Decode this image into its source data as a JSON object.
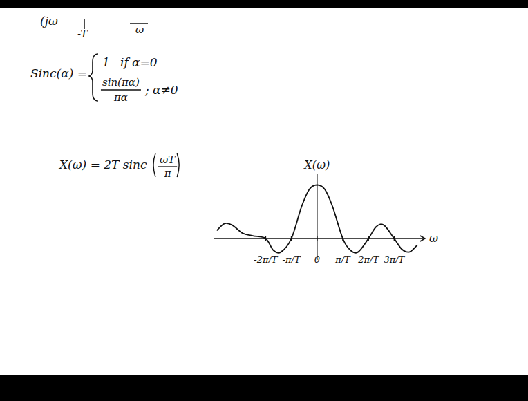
{
  "notes": {
    "top_fragment": [
      "(jω",
      "-T",
      "ω"
    ],
    "definition": {
      "lhs": "Sinc(α) =",
      "case1": "1",
      "cond1": "if α=0",
      "case2_num": "sin(πα)",
      "case2_den": "πα",
      "cond2": "; α≠0"
    },
    "equation": {
      "lhs": "X(ω) =  2T sinc",
      "frac_num": "ωT",
      "frac_den": "π"
    }
  },
  "chart_data": {
    "type": "line",
    "y_label": "X(ω)",
    "x_label": "ω",
    "color": "#111111",
    "tick_labels": "x",
    "x": [
      -3.9,
      -3.6,
      -3.3,
      -2.9,
      -2.5,
      -2.0,
      -1.7,
      -1.4,
      -1.0,
      -0.6,
      -0.3,
      0,
      0.3,
      0.6,
      1.0,
      1.3,
      1.6,
      2.0,
      2.3,
      2.6,
      3.0,
      3.3,
      3.6,
      3.9
    ],
    "values": [
      0.15,
      0.28,
      0.25,
      0.1,
      0.05,
      0,
      -0.22,
      -0.25,
      0,
      0.6,
      0.92,
      1,
      0.92,
      0.6,
      0,
      -0.22,
      -0.25,
      0,
      0.22,
      0.25,
      0,
      -0.2,
      -0.25,
      -0.12
    ],
    "xlim": [
      -4,
      4.2
    ],
    "ylim": [
      -0.4,
      1.2
    ],
    "xticks": [
      {
        "value": -2,
        "label": "-2π/T"
      },
      {
        "value": -1,
        "label": "-π/T"
      },
      0,
      {
        "value": 1,
        "label": "π/T"
      },
      {
        "value": 2,
        "label": "2π/T"
      },
      {
        "value": 3,
        "label": "3π/T"
      }
    ]
  }
}
